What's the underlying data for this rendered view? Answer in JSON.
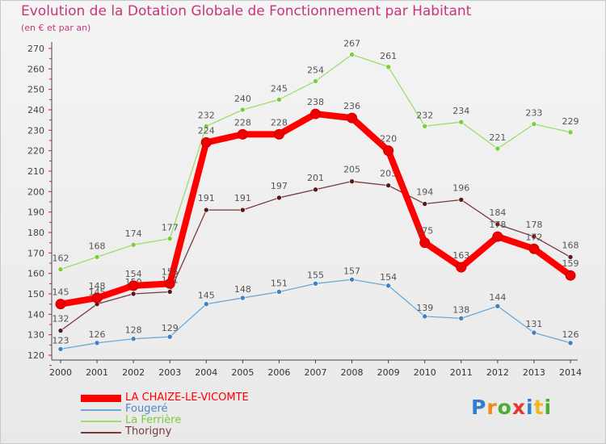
{
  "title": "Evolution de la Dotation Globale de Fonctionnement par Habitant",
  "subtitle": "(en € et par an)",
  "logo_text": "Proxiti",
  "chart_data": {
    "type": "line",
    "title": "Evolution de la Dotation Globale de Fonctionnement par Habitant",
    "subtitle": "(en € et par an)",
    "xlabel": "",
    "ylabel": "",
    "ylim": [
      120,
      270
    ],
    "yticks": [
      120,
      130,
      140,
      150,
      160,
      170,
      180,
      190,
      200,
      210,
      220,
      230,
      240,
      250,
      260,
      270
    ],
    "grid": false,
    "legend_position": "bottom-left",
    "categories": [
      "2000",
      "2001",
      "2002",
      "2003",
      "2004",
      "2005",
      "2006",
      "2007",
      "2008",
      "2009",
      "2010",
      "2011",
      "2012",
      "2013",
      "2014"
    ],
    "series": [
      {
        "name": "Fougeré",
        "color": "#6aaad8",
        "marker": "#3e82c4",
        "values": [
          123,
          126,
          128,
          129,
          145,
          148,
          151,
          155,
          157,
          154,
          139,
          138,
          144,
          131,
          126
        ]
      },
      {
        "name": "La Ferrière",
        "color": "#9edc6e",
        "marker": "#7ccc3c",
        "values": [
          162,
          168,
          174,
          177,
          232,
          240,
          245,
          254,
          267,
          261,
          232,
          234,
          221,
          233,
          229
        ]
      },
      {
        "name": "Thorigny",
        "color": "#7a3a3a",
        "marker": "#5a1818",
        "values": [
          132,
          145,
          150,
          151,
          191,
          191,
          197,
          201,
          205,
          203,
          194,
          196,
          184,
          178,
          168
        ]
      },
      {
        "name": "LA CHAIZE-LE-VICOMTE",
        "color": "#ff0000",
        "marker": "#ee0000",
        "values": [
          145,
          148,
          154,
          155,
          224,
          228,
          228,
          238,
          236,
          220,
          175,
          163,
          178,
          172,
          159
        ]
      }
    ],
    "legend": [
      "LA CHAIZE-LE-VICOMTE",
      "Fougeré",
      "La Ferrière",
      "Thorigny"
    ]
  }
}
